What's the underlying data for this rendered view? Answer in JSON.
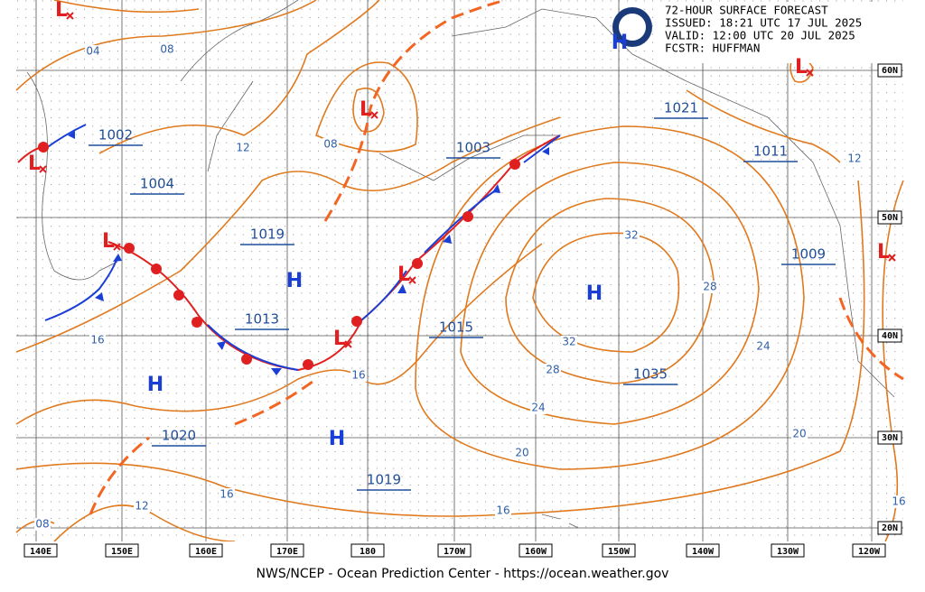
{
  "header": {
    "lines": [
      "72-HOUR SURFACE FORECAST",
      "ISSUED: 18:21 UTC 17 JUL 2025",
      "VALID:  12:00 UTC 20 JUL 2025",
      "FCSTR:  HUFFMAN"
    ]
  },
  "footer": "NWS/NCEP - Ocean Prediction Center - https://ocean.weather.gov",
  "longitudes": [
    "140E",
    "150E",
    "160E",
    "170E",
    "180",
    "170W",
    "160W",
    "150W",
    "140W",
    "130W",
    "120W"
  ],
  "latitudes": [
    "60N",
    "50N",
    "40N",
    "30N",
    "20N"
  ],
  "pressures": [
    "1002",
    "1004",
    "1019",
    "1013",
    "1020",
    "1003",
    "1015",
    "1035",
    "1019",
    "1021",
    "1011",
    "1009"
  ],
  "isobar_labels": [
    "04",
    "08",
    "12",
    "08",
    "16",
    "16",
    "16",
    "12",
    "08",
    "16",
    "20",
    "24",
    "28",
    "32",
    "32",
    "28",
    "24",
    "20",
    "16",
    "12"
  ],
  "systems": [
    "L",
    "L",
    "L",
    "L",
    "L",
    "L",
    "L",
    "L",
    "H",
    "H",
    "H",
    "H",
    "H"
  ]
}
